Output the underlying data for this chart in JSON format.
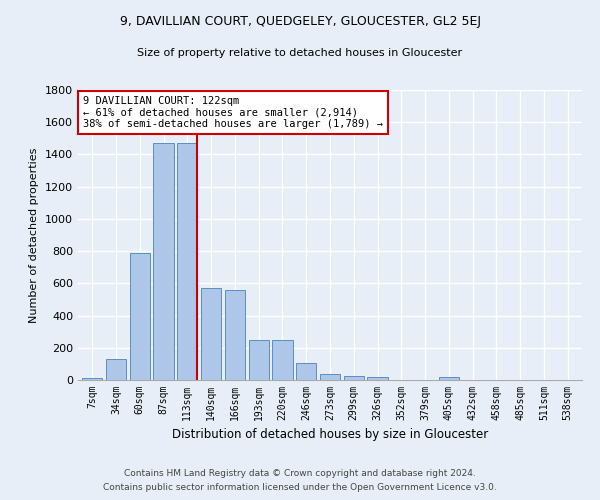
{
  "title": "9, DAVILLIAN COURT, QUEDGELEY, GLOUCESTER, GL2 5EJ",
  "subtitle": "Size of property relative to detached houses in Gloucester",
  "xlabel": "Distribution of detached houses by size in Gloucester",
  "ylabel": "Number of detached properties",
  "bar_categories": [
    "7sqm",
    "34sqm",
    "60sqm",
    "87sqm",
    "113sqm",
    "140sqm",
    "166sqm",
    "193sqm",
    "220sqm",
    "246sqm",
    "273sqm",
    "299sqm",
    "326sqm",
    "352sqm",
    "379sqm",
    "405sqm",
    "432sqm",
    "458sqm",
    "485sqm",
    "511sqm",
    "538sqm"
  ],
  "bar_values": [
    10,
    130,
    790,
    1470,
    1470,
    570,
    560,
    250,
    250,
    105,
    35,
    25,
    20,
    0,
    0,
    20,
    0,
    0,
    0,
    0,
    0
  ],
  "bar_color": "#aec6e8",
  "bar_edge_color": "#5a8fc0",
  "vline_idx": 4,
  "vline_color": "#cc0000",
  "annotation_text": "9 DAVILLIAN COURT: 122sqm\n← 61% of detached houses are smaller (2,914)\n38% of semi-detached houses are larger (1,789) →",
  "annotation_box_color": "#ffffff",
  "annotation_box_edge": "#cc0000",
  "ylim": [
    0,
    1800
  ],
  "yticks": [
    0,
    200,
    400,
    600,
    800,
    1000,
    1200,
    1400,
    1600,
    1800
  ],
  "footer1": "Contains HM Land Registry data © Crown copyright and database right 2024.",
  "footer2": "Contains public sector information licensed under the Open Government Licence v3.0.",
  "bg_color": "#e8eef7",
  "grid_color": "#ffffff"
}
